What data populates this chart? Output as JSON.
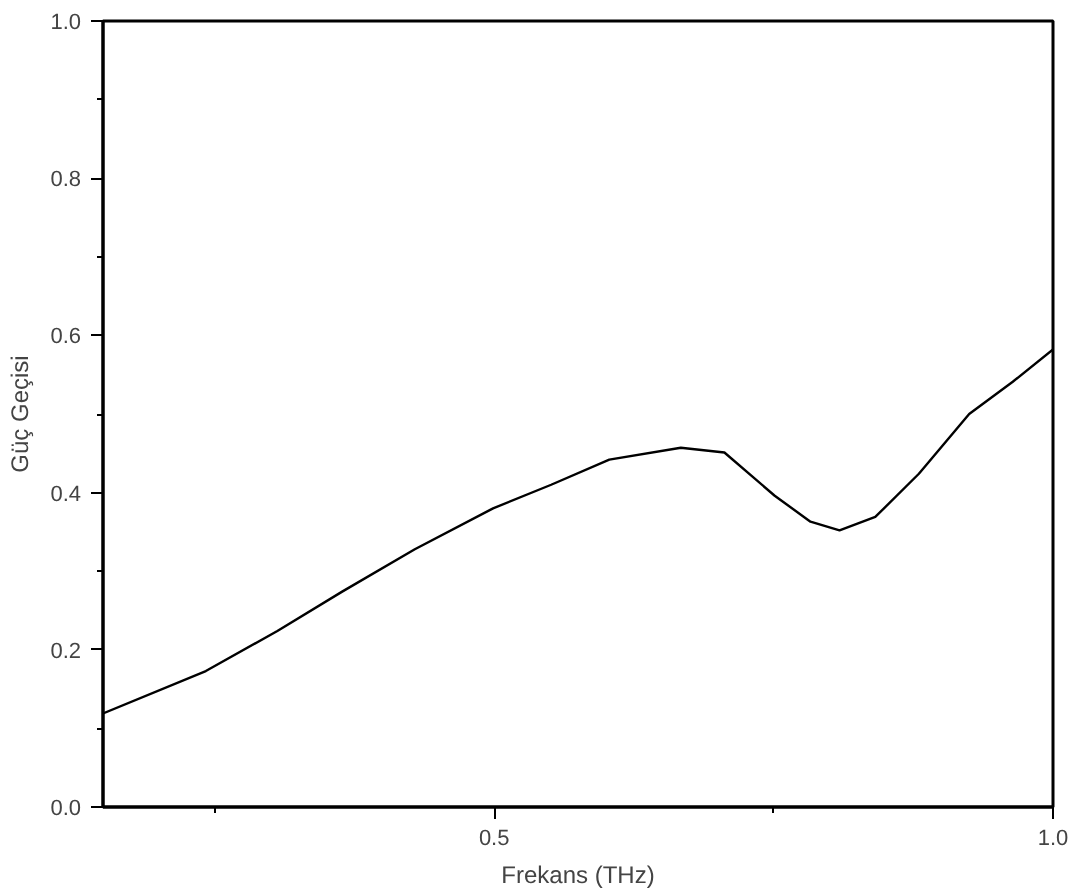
{
  "chart_data": {
    "type": "line",
    "xlabel": "Frekans (THz)",
    "ylabel": "Güç Geçisi",
    "x": [
      0.15,
      0.242,
      0.306,
      0.364,
      0.429,
      0.499,
      0.551,
      0.603,
      0.667,
      0.706,
      0.751,
      0.783,
      0.809,
      0.841,
      0.88,
      0.925,
      0.964,
      1.0
    ],
    "series": [
      {
        "color": "#000000",
        "values": [
          0.119,
          0.173,
          0.224,
          0.274,
          0.328,
          0.38,
          0.41,
          0.442,
          0.457,
          0.451,
          0.396,
          0.363,
          0.352,
          0.369,
          0.424,
          0.5,
          0.541,
          0.582
        ]
      }
    ],
    "xlim": [
      0.15,
      1.0
    ],
    "ylim": [
      0.0,
      1.0
    ],
    "xticks": [
      {
        "value": 0.25,
        "label": null
      },
      0.5,
      {
        "value": 0.75,
        "label": null
      },
      {
        "value": 1.0,
        "label": "1.0"
      }
    ],
    "yticks": [
      {
        "value": 0.0,
        "label": "0.0"
      },
      {
        "value": 0.1,
        "label": null
      },
      0.2,
      {
        "value": 0.3,
        "label": null
      },
      0.4,
      {
        "value": 0.5,
        "label": null
      },
      0.6,
      {
        "value": 0.7,
        "label": null
      },
      0.8,
      {
        "value": 0.9,
        "label": null
      },
      {
        "value": 1.0,
        "label": "1.0"
      }
    ],
    "grid": false,
    "marker": "none",
    "line_style": "solid"
  }
}
